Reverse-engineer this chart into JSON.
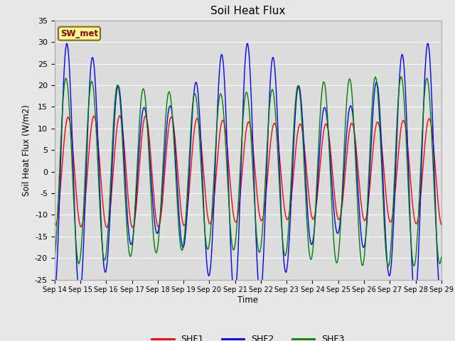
{
  "title": "Soil Heat Flux",
  "ylabel": "Soil Heat Flux (W/m2)",
  "xlabel": "Time",
  "ylim": [
    -25,
    35
  ],
  "background_color": "#e8e8e8",
  "plot_bg_color": "#dcdcdc",
  "grid_color": "#ffffff",
  "line_colors": {
    "SHF1": "red",
    "SHF2": "blue",
    "SHF3": "green"
  },
  "legend_label": "SW_met",
  "legend_box_color": "#ffff99",
  "legend_box_edge": "#8b6914",
  "xtick_labels": [
    "Sep 14",
    "Sep 15",
    "Sep 16",
    "Sep 17",
    "Sep 18",
    "Sep 19",
    "Sep 20",
    "Sep 21",
    "Sep 22",
    "Sep 23",
    "Sep 24",
    "Sep 25",
    "Sep 26",
    "Sep 27",
    "Sep 28",
    "Sep 29"
  ],
  "ytick_values": [
    -25,
    -20,
    -15,
    -10,
    -5,
    0,
    5,
    10,
    15,
    20,
    25,
    30,
    35
  ]
}
